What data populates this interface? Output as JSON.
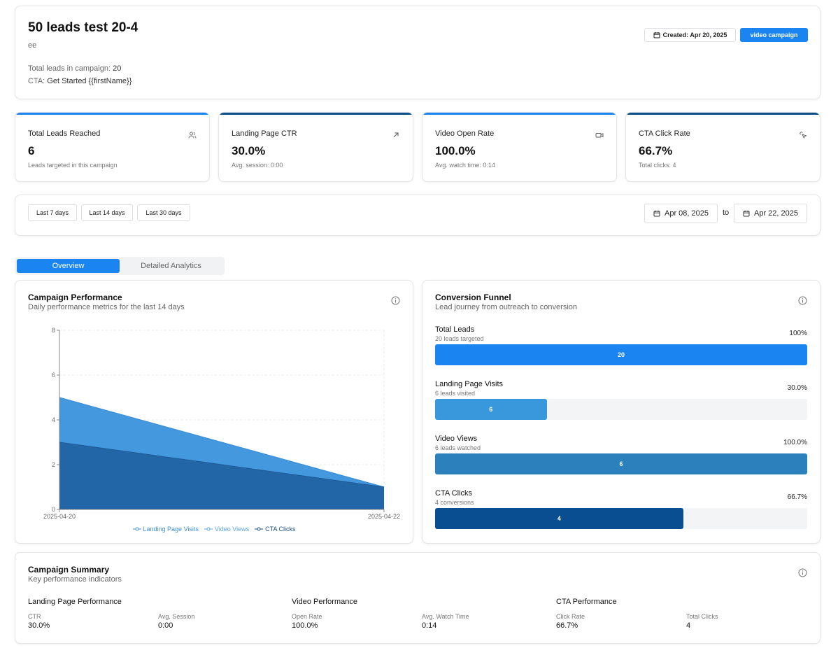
{
  "colors": {
    "primary": "#1a84f0",
    "stat_bar_light": "#1a84f0",
    "stat_bar_dark": "#0b4f8a",
    "area_landing": "#4fa3e8",
    "area_video": "#3d8fd6",
    "area_cta": "#2266a8",
    "funnel_total": "#1a84f0",
    "funnel_landing": "#3997dc",
    "funnel_video": "#2c80bb",
    "funnel_cta": "#084e90"
  },
  "header": {
    "title": "50 leads test 20-4",
    "subtitle": "ee",
    "total_leads_label": "Total leads in campaign: ",
    "total_leads_value": "20",
    "cta_label": "CTA: ",
    "cta_value": "Get Started {{firstName}}",
    "created_badge": "Created: Apr 20, 2025",
    "type_badge": "video campaign"
  },
  "stats": [
    {
      "label": "Total Leads Reached",
      "value": "6",
      "sub": "Leads targeted in this campaign",
      "icon": "users-icon"
    },
    {
      "label": "Landing Page CTR",
      "value": "30.0%",
      "sub": "Avg. session: 0:00",
      "icon": "arrow-up-right-icon"
    },
    {
      "label": "Video Open Rate",
      "value": "100.0%",
      "sub": "Avg. watch time: 0:14",
      "icon": "video-icon"
    },
    {
      "label": "CTA Click Rate",
      "value": "66.7%",
      "sub": "Total clicks: 4",
      "icon": "pointer-click-icon"
    }
  ],
  "filters": {
    "ranges": [
      "Last 7 days",
      "Last 14 days",
      "Last 30 days"
    ],
    "start_date": "Apr 08, 2025",
    "to_label": "to",
    "end_date": "Apr 22, 2025"
  },
  "tabs": {
    "overview": "Overview",
    "detailed": "Detailed Analytics"
  },
  "performance": {
    "title": "Campaign Performance",
    "subtitle": "Daily performance metrics for the last 14 days"
  },
  "chart_data": {
    "type": "area",
    "title": "Campaign Performance",
    "x": [
      "2025-04-20",
      "2025-04-22"
    ],
    "ylim": [
      0,
      8
    ],
    "yticks": [
      0,
      2,
      4,
      6,
      8
    ],
    "grid": true,
    "legend": "bottom",
    "stacked": false,
    "series": [
      {
        "name": "Landing Page Visits",
        "values": [
          5,
          1
        ]
      },
      {
        "name": "Video Views",
        "values": [
          5,
          1
        ]
      },
      {
        "name": "CTA Clicks",
        "values": [
          3,
          1
        ]
      }
    ]
  },
  "funnel": {
    "title": "Conversion Funnel",
    "subtitle": "Lead journey from outreach to conversion",
    "stages": [
      {
        "label": "Total Leads",
        "sub": "20 leads targeted",
        "pct": "100%",
        "value": "20",
        "fill": 1.0
      },
      {
        "label": "Landing Page Visits",
        "sub": "6 leads visited",
        "pct": "30.0%",
        "value": "6",
        "fill": 0.3
      },
      {
        "label": "Video Views",
        "sub": "6 leads watched",
        "pct": "100.0%",
        "value": "6",
        "fill": 1.0
      },
      {
        "label": "CTA Clicks",
        "sub": "4 conversions",
        "pct": "66.7%",
        "value": "4",
        "fill": 0.667
      }
    ]
  },
  "summary": {
    "title": "Campaign Summary",
    "subtitle": "Key performance indicators",
    "groups": [
      {
        "title": "Landing Page Performance",
        "metrics": [
          {
            "label": "CTR",
            "value": "30.0%"
          },
          {
            "label": "Avg. Session",
            "value": "0:00"
          }
        ]
      },
      {
        "title": "Video Performance",
        "metrics": [
          {
            "label": "Open Rate",
            "value": "100.0%"
          },
          {
            "label": "Avg. Watch Time",
            "value": "0:14"
          }
        ]
      },
      {
        "title": "CTA Performance",
        "metrics": [
          {
            "label": "Click Rate",
            "value": "66.7%"
          },
          {
            "label": "Total Clicks",
            "value": "4"
          }
        ]
      }
    ]
  }
}
